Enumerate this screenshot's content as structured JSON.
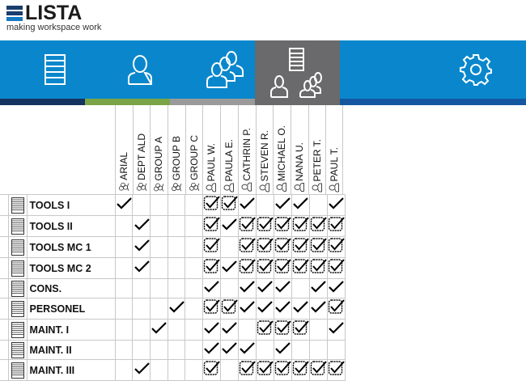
{
  "brand": {
    "name": "LISTA",
    "tagline": "making workspace work"
  },
  "colors": {
    "band": "#0a87cc",
    "active_tab": "#6a6a6c",
    "strip_navy": "#14335e",
    "strip_green": "#7ba446",
    "strip_gray": "#9a9a9a",
    "strip_blue": "#1556a0"
  },
  "tabs": [
    {
      "icon": "cabinet-icon",
      "active": false
    },
    {
      "icon": "user-icon",
      "active": false
    },
    {
      "icon": "group-icon",
      "active": false
    },
    {
      "icon": "cabinet-users-icon",
      "active": true
    },
    {
      "icon": "gear-icon",
      "active": false
    }
  ],
  "columns": [
    {
      "label": "ARIAL",
      "type": "group"
    },
    {
      "label": "DEPT ALD",
      "type": "group"
    },
    {
      "label": "GROUP A",
      "type": "group"
    },
    {
      "label": "GROUP B",
      "type": "group"
    },
    {
      "label": "GROUP C",
      "type": "group"
    },
    {
      "label": "PAUL W.",
      "type": "user"
    },
    {
      "label": "PAULA E.",
      "type": "user"
    },
    {
      "label": "CATHRIN P.",
      "type": "user"
    },
    {
      "label": "STEVEN R.",
      "type": "user"
    },
    {
      "label": "MICHAEL O.",
      "type": "user"
    },
    {
      "label": "NANA U.",
      "type": "user"
    },
    {
      "label": "PETER T.",
      "type": "user"
    },
    {
      "label": "PAUL T.",
      "type": "user"
    }
  ],
  "legend_note": "0 = empty, 1 = check, 2 = boxed (inherited) check",
  "rows": [
    {
      "label": "TOOLS I",
      "cells": [
        1,
        0,
        0,
        0,
        0,
        2,
        2,
        1,
        0,
        1,
        1,
        0,
        1
      ]
    },
    {
      "label": "TOOLS II",
      "cells": [
        0,
        1,
        0,
        0,
        0,
        2,
        1,
        2,
        2,
        2,
        2,
        2,
        2
      ]
    },
    {
      "label": "TOOLS MC 1",
      "cells": [
        0,
        1,
        0,
        0,
        0,
        2,
        0,
        2,
        2,
        2,
        2,
        2,
        2
      ]
    },
    {
      "label": "TOOLS MC 2",
      "cells": [
        0,
        1,
        0,
        0,
        0,
        2,
        1,
        2,
        2,
        2,
        2,
        2,
        2
      ]
    },
    {
      "label": "CONS.",
      "cells": [
        0,
        0,
        0,
        0,
        0,
        1,
        0,
        1,
        1,
        1,
        0,
        1,
        1
      ]
    },
    {
      "label": "PERSONEL",
      "cells": [
        0,
        0,
        0,
        1,
        0,
        2,
        2,
        1,
        1,
        1,
        1,
        1,
        2
      ]
    },
    {
      "label": "MAINT. I",
      "cells": [
        0,
        0,
        1,
        0,
        0,
        1,
        1,
        0,
        2,
        2,
        2,
        0,
        1
      ]
    },
    {
      "label": "MAINT. II",
      "cells": [
        0,
        0,
        0,
        0,
        0,
        1,
        1,
        1,
        0,
        1,
        0,
        0,
        0
      ]
    },
    {
      "label": "MAINT. III",
      "cells": [
        0,
        1,
        0,
        0,
        0,
        2,
        0,
        2,
        2,
        2,
        2,
        2,
        2
      ]
    }
  ]
}
